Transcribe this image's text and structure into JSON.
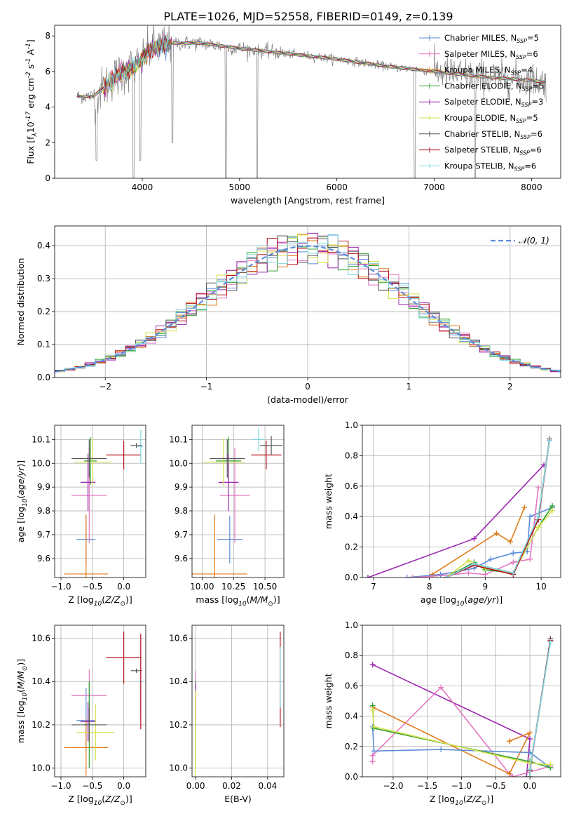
{
  "figure": {
    "title": "PLATE=1026, MJD=52558, FIBERID=0149, z=0.139"
  },
  "colors": {
    "chabrier_miles": "#5b8bd9",
    "salpeter_miles": "#e377c2",
    "kroupa_miles": "#e07b1a",
    "chabrier_elodie": "#2ca02c",
    "salpeter_elodie": "#9b27af",
    "kroupa_elodie": "#d6e04a",
    "chabrier_stelib": "#555555",
    "salpeter_stelib": "#b5121b",
    "kroupa_stelib": "#7fd6e0",
    "data": "#808080",
    "grid": "#b0b0b0"
  },
  "chart_data": [
    {
      "id": "spectrum",
      "type": "line",
      "xlabel": "wavelength [Angstrom, rest frame]",
      "ylabel": "Flux [f$_λ$10$^{-17}$ erg cm$^{-2}$ s$^{-1}$ A$^{-1}$]",
      "xlim": [
        3100,
        8300
      ],
      "ylim": [
        0,
        8.6
      ],
      "xticks": [
        4000,
        5000,
        6000,
        7000,
        8000
      ],
      "yticks": [
        0,
        2,
        4,
        6,
        8
      ],
      "legend_position": "right",
      "legend": [
        {
          "text": "Chabrier MILES, N",
          "sub": "SSP",
          "suffix": "=5",
          "color_key": "chabrier_miles"
        },
        {
          "text": "Salpeter MILES, N",
          "sub": "SSP",
          "suffix": "=6",
          "color_key": "salpeter_miles"
        },
        {
          "text": "Kroupa MILES, N",
          "sub": "SSP",
          "suffix": "=4",
          "color_key": "kroupa_miles"
        },
        {
          "text": "Chabrier ELODIE, N",
          "sub": "SSP",
          "suffix": "=5",
          "color_key": "chabrier_elodie"
        },
        {
          "text": "Salpeter ELODIE, N",
          "sub": "SSP",
          "suffix": "=3",
          "color_key": "salpeter_elodie"
        },
        {
          "text": "Kroupa ELODIE, N",
          "sub": "SSP",
          "suffix": "=5",
          "color_key": "kroupa_elodie"
        },
        {
          "text": "Chabrier STELIB, N",
          "sub": "SSP",
          "suffix": "=6",
          "color_key": "chabrier_stelib"
        },
        {
          "text": "Salpeter STELIB, N",
          "sub": "SSP",
          "suffix": "=6",
          "color_key": "salpeter_stelib"
        },
        {
          "text": "Kroupa STELIB, N",
          "sub": "SSP",
          "suffix": "=6",
          "color_key": "kroupa_stelib"
        }
      ],
      "continuum": [
        [
          3330,
          4.6
        ],
        [
          3500,
          4.6
        ],
        [
          3700,
          5.6
        ],
        [
          3950,
          6.4
        ],
        [
          4100,
          7.3
        ],
        [
          4300,
          7.6
        ],
        [
          4600,
          7.6
        ],
        [
          5000,
          7.3
        ],
        [
          5500,
          7.0
        ],
        [
          6000,
          6.7
        ],
        [
          6500,
          6.3
        ],
        [
          7000,
          6.0
        ],
        [
          7500,
          5.7
        ],
        [
          8000,
          5.5
        ],
        [
          8150,
          5.4
        ]
      ],
      "features": [
        [
          3530,
          1.0
        ],
        [
          3910,
          0.0
        ],
        [
          3980,
          1.0
        ],
        [
          4310,
          2.0
        ],
        [
          4860,
          0.0
        ],
        [
          5180,
          0.0
        ],
        [
          6800,
          0.0
        ],
        [
          7420,
          0.0
        ]
      ]
    },
    {
      "id": "residuals",
      "type": "histogram",
      "xlabel": "(data-model)/error",
      "ylabel": "Normed distribution",
      "xlim": [
        -2.5,
        2.5
      ],
      "ylim": [
        0,
        0.46
      ],
      "xticks": [
        -2,
        -1,
        0,
        1,
        2
      ],
      "yticks": [
        0.0,
        0.1,
        0.2,
        0.3,
        0.4
      ],
      "grid": true,
      "legend_position": "top-right",
      "legend_label": "𝒩(0, 1)",
      "bins": 50,
      "bin_range": [
        -2.5,
        2.5
      ]
    },
    {
      "id": "age_vs_Z",
      "type": "scatter",
      "xlabel": "Z [log$_{10}$($Z/Z_{⊙}$)]",
      "ylabel": "age  [log$_{10}$($age/yr$)]",
      "xlim": [
        -1.1,
        0.35
      ],
      "ylim": [
        9.52,
        10.16
      ],
      "xticks": [
        -1.0,
        -0.5,
        0.0
      ],
      "yticks": [
        9.6,
        9.7,
        9.8,
        9.9,
        10.0,
        10.1
      ],
      "grid": true,
      "points": [
        {
          "m": "chabrier_miles",
          "x": -0.6,
          "xe": 0.15,
          "y": 9.68,
          "ye": 0.1
        },
        {
          "m": "salpeter_miles",
          "x": -0.55,
          "xe": 0.28,
          "y": 9.865,
          "ye": 0.2
        },
        {
          "m": "kroupa_miles",
          "x": -0.6,
          "xe": 0.35,
          "y": 9.535,
          "ye": 0.25
        },
        {
          "m": "chabrier_elodie",
          "x": -0.53,
          "xe": 0.1,
          "y": 10.01,
          "ye": 0.1
        },
        {
          "m": "salpeter_elodie",
          "x": -0.57,
          "xe": 0.12,
          "y": 9.92,
          "ye": 0.12
        },
        {
          "m": "kroupa_elodie",
          "x": -0.5,
          "xe": 0.3,
          "y": 10.005,
          "ye": 0.1
        },
        {
          "m": "chabrier_stelib",
          "x": -0.55,
          "xe": 0.28,
          "y": 10.02,
          "ye": 0.08
        },
        {
          "m": "salpeter_stelib",
          "x": 0.0,
          "xe": 0.28,
          "y": 10.035,
          "ye": 0.06
        },
        {
          "m": "kroupa_stelib",
          "x": 0.27,
          "xe": 0.04,
          "y": 10.07,
          "ye": 0.07
        },
        {
          "m": "chabrier_stelib",
          "x": 0.2,
          "xe": 0.09,
          "y": 10.075,
          "ye": 0.01
        }
      ]
    },
    {
      "id": "age_vs_mass",
      "type": "scatter",
      "xlabel": "mass [log$_{10}$($M/M_{⊙}$)]",
      "ylabel": "",
      "xlim": [
        9.92,
        10.65
      ],
      "ylim": [
        9.52,
        10.16
      ],
      "xticks": [
        10.0,
        10.25,
        10.5
      ],
      "yticks": [
        9.6,
        9.7,
        9.8,
        9.9,
        10.0,
        10.1
      ],
      "grid": true,
      "points": [
        {
          "m": "chabrier_miles",
          "x": 10.22,
          "xe": 0.1,
          "y": 9.68,
          "ye": 0.1
        },
        {
          "m": "salpeter_miles",
          "x": 10.26,
          "xe": 0.12,
          "y": 9.865,
          "ye": 0.2
        },
        {
          "m": "kroupa_miles",
          "x": 10.1,
          "xe": 0.26,
          "y": 9.535,
          "ye": 0.25
        },
        {
          "m": "chabrier_elodie",
          "x": 10.21,
          "xe": 0.1,
          "y": 10.01,
          "ye": 0.1
        },
        {
          "m": "salpeter_elodie",
          "x": 10.21,
          "xe": 0.08,
          "y": 9.92,
          "ye": 0.12
        },
        {
          "m": "kroupa_elodie",
          "x": 10.17,
          "xe": 0.17,
          "y": 10.005,
          "ye": 0.1
        },
        {
          "m": "chabrier_stelib",
          "x": 10.2,
          "xe": 0.14,
          "y": 10.02,
          "ye": 0.08
        },
        {
          "m": "salpeter_stelib",
          "x": 10.51,
          "xe": 0.12,
          "y": 10.035,
          "ye": 0.06
        },
        {
          "m": "kroupa_stelib",
          "x": 10.45,
          "xe": 0.05,
          "y": 10.1,
          "ye": 0.05
        },
        {
          "m": "chabrier_stelib",
          "x": 10.55,
          "xe": 0.09,
          "y": 10.075,
          "ye": 0.04
        }
      ]
    },
    {
      "id": "weight_vs_age",
      "type": "line",
      "xlabel": "age  [log$_{10}$($age/yr$)]",
      "ylabel": "mass weight",
      "xlim": [
        6.8,
        10.35
      ],
      "ylim": [
        0,
        1.0
      ],
      "xticks": [
        7,
        8,
        9,
        10
      ],
      "yticks": [
        0.0,
        0.2,
        0.4,
        0.6,
        0.8,
        1.0
      ],
      "grid": true,
      "series": [
        {
          "m": "salpeter_elodie",
          "x": [
            6.9,
            8.8,
            10.05
          ],
          "y": [
            0.0,
            0.255,
            0.74
          ]
        },
        {
          "m": "kroupa_miles",
          "x": [
            8.05,
            9.2,
            9.45,
            9.7
          ],
          "y": [
            0.02,
            0.29,
            0.235,
            0.46
          ]
        },
        {
          "m": "chabrier_miles",
          "x": [
            7.6,
            8.2,
            8.8,
            9.1,
            9.5,
            9.75,
            9.8,
            10.2
          ],
          "y": [
            0.0,
            0.02,
            0.06,
            0.12,
            0.16,
            0.17,
            0.4,
            0.46
          ]
        },
        {
          "m": "salpeter_miles",
          "x": [
            7.7,
            8.3,
            8.7,
            9.0,
            9.5,
            9.8,
            9.95
          ],
          "y": [
            0.0,
            0.015,
            0.03,
            0.02,
            0.1,
            0.12,
            0.59
          ]
        },
        {
          "m": "chabrier_elodie",
          "x": [
            8.3,
            8.8,
            9.0,
            9.5,
            9.95,
            10.2
          ],
          "y": [
            0.0,
            0.1,
            0.05,
            0.03,
            0.33,
            0.47
          ]
        },
        {
          "m": "kroupa_elodie",
          "x": [
            8.3,
            8.7,
            9.0,
            9.5,
            9.95,
            10.2
          ],
          "y": [
            0.0,
            0.11,
            0.06,
            0.03,
            0.33,
            0.44
          ]
        },
        {
          "m": "chabrier_stelib",
          "x": [
            8.3,
            8.8,
            9.5,
            9.95,
            10.15
          ],
          "y": [
            0.0,
            0.09,
            0.03,
            0.4,
            0.91
          ]
        },
        {
          "m": "salpeter_stelib",
          "x": [
            8.3,
            8.8,
            9.5,
            9.95,
            10.15
          ],
          "y": [
            0.0,
            0.08,
            0.02,
            0.38,
            0.9
          ]
        },
        {
          "m": "kroupa_stelib",
          "x": [
            8.3,
            8.8,
            9.5,
            9.95,
            10.15
          ],
          "y": [
            0.0,
            0.09,
            0.03,
            0.4,
            0.9
          ]
        }
      ]
    },
    {
      "id": "mass_vs_Z",
      "type": "scatter",
      "xlabel": "Z [log$_{10}$($Z/Z_{⊙}$)]",
      "ylabel": "mass [log$_{10}$($M/M_{⊙}$)]",
      "xlim": [
        -1.1,
        0.35
      ],
      "ylim": [
        9.96,
        10.66
      ],
      "xticks": [
        -1.0,
        -0.5,
        0.0
      ],
      "yticks": [
        10.0,
        10.2,
        10.4,
        10.6
      ],
      "grid": true,
      "points": [
        {
          "m": "chabrier_miles",
          "x": -0.6,
          "xe": 0.15,
          "y": 10.22,
          "ye": 0.15
        },
        {
          "m": "salpeter_miles",
          "x": -0.55,
          "xe": 0.28,
          "y": 10.335,
          "ye": 0.12
        },
        {
          "m": "kroupa_miles",
          "x": -0.6,
          "xe": 0.35,
          "y": 10.095,
          "ye": 0.13
        },
        {
          "m": "chabrier_elodie",
          "x": -0.55,
          "xe": 0.1,
          "y": 10.2,
          "ye": 0.2
        },
        {
          "m": "salpeter_elodie",
          "x": -0.57,
          "xe": 0.12,
          "y": 10.215,
          "ye": 0.09
        },
        {
          "m": "kroupa_elodie",
          "x": -0.45,
          "xe": 0.3,
          "y": 10.165,
          "ye": 0.13
        },
        {
          "m": "chabrier_stelib",
          "x": -0.55,
          "xe": 0.28,
          "y": 10.2,
          "ye": 0.08
        },
        {
          "m": "salpeter_stelib",
          "x": 0.0,
          "xe": 0.28,
          "y": 10.51,
          "ye": 0.12
        },
        {
          "m": "kroupa_stelib",
          "x": 0.27,
          "xe": 0.04,
          "y": 10.4,
          "ye": 0.14
        },
        {
          "m": "chabrier_stelib",
          "x": 0.2,
          "xe": 0.09,
          "y": 10.45,
          "ye": 0.01
        },
        {
          "m": "salpeter_stelib",
          "x": 0.27,
          "xe": 0.0,
          "y": 10.4,
          "ye": 0.22
        }
      ]
    },
    {
      "id": "mass_vs_ebv",
      "type": "scatter",
      "xlabel": "E(B-V)",
      "ylabel": "",
      "xlim": [
        -0.002,
        0.049
      ],
      "ylim": [
        9.96,
        10.66
      ],
      "xticks": [
        0.0,
        0.02,
        0.04
      ],
      "yticks": [
        10.0,
        10.2,
        10.4,
        10.6
      ],
      "grid": true,
      "points": [
        {
          "m": "salpeter_miles",
          "x": 0.0,
          "xe": 0.0,
          "y": 10.3,
          "ye": 0.15
        },
        {
          "m": "chabrier_elodie",
          "x": 0.0,
          "xe": 0.0,
          "y": 10.2,
          "ye": 0.2
        },
        {
          "m": "salpeter_elodie",
          "x": 0.0,
          "xe": 0.0,
          "y": 10.3,
          "ye": 0.09
        },
        {
          "m": "kroupa_elodie",
          "x": 0.0,
          "xe": 0.0,
          "y": 10.16,
          "ye": 0.2
        },
        {
          "m": "salpeter_stelib",
          "x": 0.047,
          "xe": 0.0,
          "y": 10.41,
          "ye": 0.22
        },
        {
          "m": "kroupa_stelib",
          "x": 0.047,
          "xe": 0.0,
          "y": 10.42,
          "ye": 0.14
        }
      ]
    },
    {
      "id": "weight_vs_Z",
      "type": "line",
      "xlabel": "Z [log$_{10}$($Z/Z_{⊙}$)]",
      "ylabel": "mass weight",
      "xlim": [
        -2.45,
        0.45
      ],
      "ylim": [
        0,
        1.0
      ],
      "xticks": [
        -2.0,
        -1.5,
        -1.0,
        -0.5,
        0.0
      ],
      "yticks": [
        0.0,
        0.2,
        0.4,
        0.6,
        0.8,
        1.0
      ],
      "grid": true,
      "series": [
        {
          "m": "salpeter_elodie",
          "x": [
            -2.3,
            0.0,
            -0.05
          ],
          "y": [
            0.74,
            0.25,
            0.0
          ]
        },
        {
          "m": "salpeter_miles",
          "x": [
            -2.3,
            -2.3,
            -1.3,
            -0.3,
            -0.25,
            0.3
          ],
          "y": [
            0.1,
            0.14,
            0.59,
            0.02,
            0.0,
            0.07
          ]
        },
        {
          "m": "kroupa_miles",
          "x": [
            -2.3,
            -0.3,
            0.0,
            -0.3
          ],
          "y": [
            0.46,
            0.02,
            0.29,
            0.235
          ]
        },
        {
          "m": "chabrier_miles",
          "x": [
            -2.3,
            -2.28,
            -1.3,
            0.0,
            0.3
          ],
          "y": [
            0.33,
            0.17,
            0.18,
            0.16,
            0.06
          ]
        },
        {
          "m": "chabrier_elodie",
          "x": [
            -2.3,
            -2.28,
            0.0,
            0.3
          ],
          "y": [
            0.47,
            0.32,
            0.1,
            0.06
          ]
        },
        {
          "m": "kroupa_elodie",
          "x": [
            -2.3,
            -2.28,
            0.0,
            0.3
          ],
          "y": [
            0.44,
            0.33,
            0.09,
            0.08
          ]
        },
        {
          "m": "chabrier_stelib",
          "x": [
            0.0,
            0.0,
            0.3
          ],
          "y": [
            0.0,
            0.05,
            0.91
          ]
        },
        {
          "m": "salpeter_stelib",
          "x": [
            0.0,
            0.0,
            0.3
          ],
          "y": [
            0.0,
            0.04,
            0.9
          ]
        },
        {
          "m": "kroupa_stelib",
          "x": [
            0.0,
            0.0,
            0.3
          ],
          "y": [
            0.0,
            0.05,
            0.89
          ]
        }
      ]
    }
  ]
}
